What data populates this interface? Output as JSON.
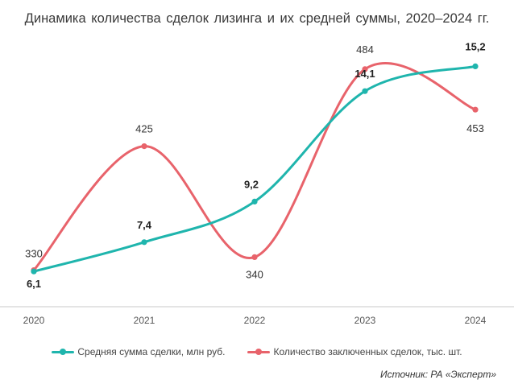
{
  "chart_data": {
    "type": "line",
    "title": "Динамика  количества  сделок лизинга и их средней суммы, 2020–2024  гг.",
    "categories": [
      "2020",
      "2021",
      "2022",
      "2023",
      "2024"
    ],
    "series": [
      {
        "name": "Средняя  сумма сделки, млн руб.",
        "values": [
          6.1,
          7.4,
          9.2,
          14.1,
          15.2
        ],
        "labels": [
          "6,1",
          "7,4",
          "9,2",
          "14,1",
          "15,2"
        ],
        "color": "#1fb5ad",
        "range": [
          5.0,
          16.0
        ]
      },
      {
        "name": "Количество заключенных сделок, тыс. шт.",
        "values": [
          330,
          425,
          340,
          484,
          453
        ],
        "labels": [
          "330",
          "425",
          "340",
          "484",
          "453"
        ],
        "color": "#e8636b",
        "range": [
          310,
          500
        ]
      }
    ],
    "xlabel": "",
    "ylabel": "",
    "grid": false,
    "legend": "bottom"
  },
  "source": "Источник: РА «Эксперт»"
}
